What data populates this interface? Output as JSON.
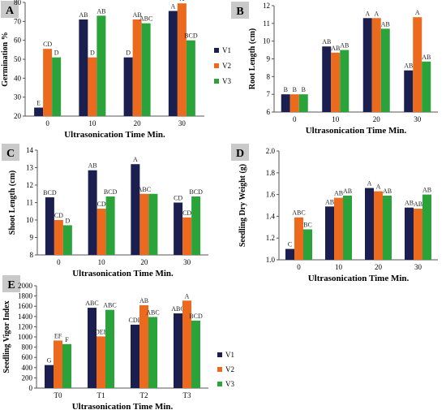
{
  "colors": {
    "V1": "#1b1f4f",
    "V2": "#ec6a1e",
    "V3": "#2aa43a",
    "panel_label_bg": "#c9c9c9"
  },
  "chart_data": [
    {
      "id": "A",
      "type": "bar",
      "panel_label": "A",
      "xlabel": "Ultrasonication Time Min.",
      "ylabel": "Germination %",
      "categories": [
        "0",
        "10",
        "20",
        "30"
      ],
      "ylim": [
        20,
        80
      ],
      "yticks": [
        20,
        30,
        40,
        50,
        60,
        70,
        80
      ],
      "series": [
        {
          "name": "V1",
          "values": [
            24.5,
            71,
            51,
            75.5
          ],
          "labels": [
            "E",
            "AB",
            "D",
            "A"
          ]
        },
        {
          "name": "V2",
          "values": [
            55.5,
            51,
            71,
            79.5
          ],
          "labels": [
            "CD",
            "D",
            "AB",
            "A"
          ]
        },
        {
          "name": "V3",
          "values": [
            51,
            73,
            69,
            60
          ],
          "labels": [
            "D",
            "AB",
            "ABC",
            "BCD"
          ]
        }
      ],
      "legend": [
        "V1",
        "V2",
        "V3"
      ],
      "legend_position": "right"
    },
    {
      "id": "B",
      "type": "bar",
      "panel_label": "B",
      "xlabel": "Ultrasonication Time Min.",
      "ylabel": "Root Length (cm)",
      "categories": [
        "0",
        "10",
        "20",
        "30"
      ],
      "ylim": [
        6,
        12
      ],
      "yticks": [
        6,
        7,
        8,
        9,
        10,
        11,
        12
      ],
      "series": [
        {
          "name": "V1",
          "values": [
            7,
            9.7,
            11.3,
            8.35
          ],
          "labels": [
            "B",
            "AB",
            "A",
            "AB"
          ]
        },
        {
          "name": "V2",
          "values": [
            7,
            9.35,
            11.3,
            11.35
          ],
          "labels": [
            "B",
            "AB",
            "A",
            "A"
          ]
        },
        {
          "name": "V3",
          "values": [
            7,
            9.5,
            10.7,
            8.85
          ],
          "labels": [
            "B",
            "AB",
            "AB",
            "AB"
          ]
        }
      ]
    },
    {
      "id": "C",
      "type": "bar",
      "panel_label": "C",
      "xlabel": "Ultrasonication Time Min.",
      "ylabel": "Shoot Length (cm)",
      "categories": [
        "0",
        "10",
        "20",
        "30"
      ],
      "ylim": [
        8,
        14
      ],
      "yticks": [
        8,
        9,
        10,
        11,
        12,
        13,
        14
      ],
      "series": [
        {
          "name": "V1",
          "values": [
            11.3,
            12.85,
            13.2,
            11
          ],
          "labels": [
            "BCD",
            "AB",
            "A",
            "CD"
          ]
        },
        {
          "name": "V2",
          "values": [
            10,
            10.65,
            11.5,
            10.15
          ],
          "labels": [
            "CD",
            "CD",
            "ABC",
            "CD"
          ]
        },
        {
          "name": "V3",
          "values": [
            9.7,
            11.35,
            11.5,
            11.35
          ],
          "labels": [
            "D",
            "BCD",
            "",
            "BCD"
          ]
        }
      ]
    },
    {
      "id": "D",
      "type": "bar",
      "panel_label": "D",
      "xlabel": "Ultrasonication Time Min.",
      "ylabel": "Seedling Dry Weight (g)",
      "categories": [
        "0",
        "10",
        "20",
        "30"
      ],
      "ylim": [
        1.0,
        2.0
      ],
      "yticks": [
        "1.0",
        "1.2",
        "1.4",
        "1.6",
        "1.8",
        "2.0"
      ],
      "series": [
        {
          "name": "V1",
          "values": [
            1.1,
            1.49,
            1.66,
            1.48
          ],
          "labels": [
            "C",
            "AB",
            "A",
            "AB"
          ]
        },
        {
          "name": "V2",
          "values": [
            1.39,
            1.57,
            1.63,
            1.47
          ],
          "labels": [
            "ABC",
            "AB",
            "A",
            "AB"
          ]
        },
        {
          "name": "V3",
          "values": [
            1.28,
            1.59,
            1.59,
            1.6
          ],
          "labels": [
            "BC",
            "AB",
            "AB",
            "AB"
          ]
        }
      ]
    },
    {
      "id": "E",
      "type": "bar",
      "panel_label": "E",
      "xlabel": "Ultrasonication Time Min.",
      "ylabel": "Seedling Vigor Index",
      "categories": [
        "T0",
        "T1",
        "T2",
        "T3"
      ],
      "ylim": [
        0,
        2000
      ],
      "yticks": [
        0,
        200,
        400,
        600,
        800,
        1000,
        1200,
        1400,
        1600,
        1800,
        2000
      ],
      "series": [
        {
          "name": "V1",
          "values": [
            450,
            1570,
            1240,
            1460
          ],
          "labels": [
            "G",
            "ABC",
            "CDE",
            "ABC"
          ]
        },
        {
          "name": "V2",
          "values": [
            930,
            1010,
            1620,
            1710
          ],
          "labels": [
            "EF",
            "DEF",
            "AB",
            "A"
          ]
        },
        {
          "name": "V3",
          "values": [
            860,
            1530,
            1390,
            1320
          ],
          "labels": [
            "F",
            "ABC",
            "ABC",
            "BCD"
          ]
        }
      ],
      "legend": [
        "V1",
        "V2",
        "V3"
      ],
      "legend_position": "right"
    }
  ]
}
